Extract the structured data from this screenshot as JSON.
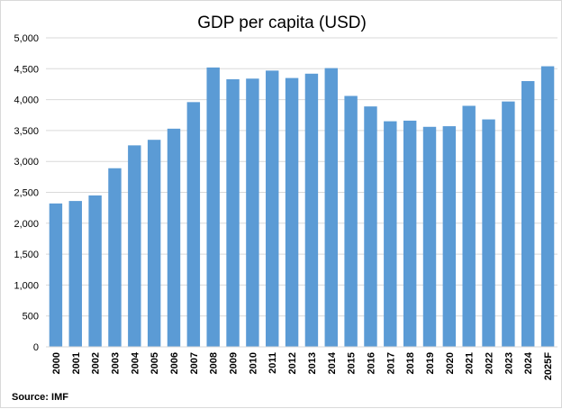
{
  "chart_data": {
    "type": "bar",
    "title": "GDP per capita (USD)",
    "xlabel": "",
    "ylabel": "",
    "categories": [
      "2000",
      "2001",
      "2002",
      "2003",
      "2004",
      "2005",
      "2006",
      "2007",
      "2008",
      "2009",
      "2010",
      "2011",
      "2012",
      "2013",
      "2014",
      "2015",
      "2016",
      "2017",
      "2018",
      "2019",
      "2020",
      "2021",
      "2022",
      "2023",
      "2024",
      "2025F"
    ],
    "values": [
      2320,
      2360,
      2450,
      2890,
      3260,
      3350,
      3530,
      3960,
      4520,
      4330,
      4340,
      4470,
      4350,
      4420,
      4510,
      4060,
      3890,
      3650,
      3660,
      3560,
      3570,
      3900,
      3680,
      3970,
      4300,
      4540
    ],
    "ylim": [
      0,
      5000
    ],
    "yticks": [
      0,
      500,
      1000,
      1500,
      2000,
      2500,
      3000,
      3500,
      4000,
      4500,
      5000
    ],
    "ytick_labels": [
      "0",
      "500",
      "1,000",
      "1,500",
      "2,000",
      "2,500",
      "3,000",
      "3,500",
      "4,000",
      "4,500",
      "5,000"
    ],
    "grid": true,
    "legend": "none",
    "bar_color": "#5b9bd5",
    "gridline_color": "#d9d9d9",
    "source": "Source: IMF"
  }
}
